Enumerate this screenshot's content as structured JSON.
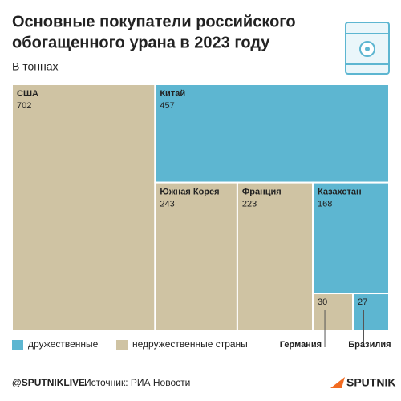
{
  "chart_data": {
    "type": "treemap",
    "title": [
      "Основные покупатели российского",
      "обогащенного урана в 2023 году"
    ],
    "subtitle": "В тоннах",
    "items": [
      {
        "name": "США",
        "value": 702,
        "color": "#cfc3a3"
      },
      {
        "name": "Китай",
        "value": 457,
        "color": "#5db6d1"
      },
      {
        "name": "Южная Корея",
        "value": 243,
        "color": "#cfc3a3"
      },
      {
        "name": "Франция",
        "value": 223,
        "color": "#cfc3a3"
      },
      {
        "name": "Казахстан",
        "value": 168,
        "color": "#5db6d1"
      },
      {
        "name": "Германия",
        "value": 30,
        "color": "#cfc3a3"
      },
      {
        "name": "Бразилия",
        "value": 27,
        "color": "#5db6d1"
      }
    ],
    "legend": [
      {
        "name": "дружественные",
        "color": "#5db6d1"
      },
      {
        "name": "недружественные страны",
        "color": "#cfc3a3"
      }
    ]
  },
  "footer": {
    "handle": "@SPUTNIKLIVE",
    "source": "Источник: РИА Новости",
    "logo": "SPUTNIK"
  }
}
